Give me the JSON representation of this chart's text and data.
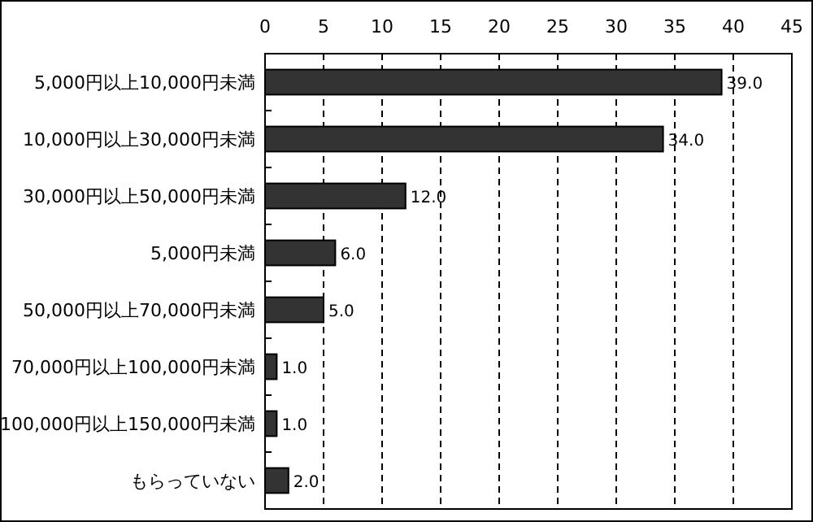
{
  "chart_data": {
    "type": "bar",
    "orientation": "horizontal",
    "categories": [
      "5,000円以上10,000円未満",
      "10,000円以上30,000円未満",
      "30,000円以上50,000円未満",
      "5,000円未満",
      "50,000円以上70,000円未満",
      "70,000円以上100,000円未満",
      "100,000円以上150,000円未満",
      "もらっていない"
    ],
    "values": [
      39,
      34,
      12,
      6,
      5,
      1,
      1,
      2
    ],
    "value_labels": [
      "39.0",
      "34.0",
      "12.0",
      "6.0",
      "5.0",
      "1.0",
      "1.0",
      "2.0"
    ],
    "color": "#333333",
    "xlim": [
      0,
      45
    ],
    "xticks": [
      0,
      5,
      10,
      15,
      20,
      25,
      30,
      35,
      40,
      45
    ],
    "grid": "x",
    "line_style": "dashed"
  }
}
